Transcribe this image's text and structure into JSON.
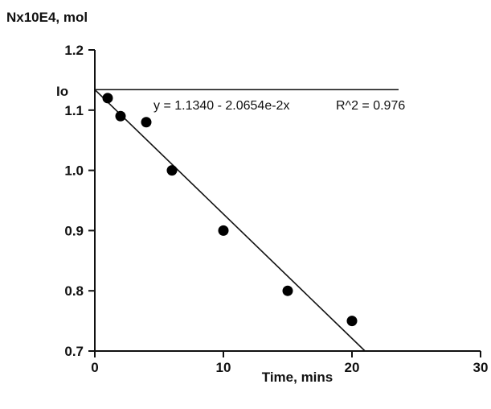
{
  "chart_data": {
    "type": "scatter",
    "ylabel": "Nx10E4, mol",
    "xlabel": "Time, mins",
    "xlim": [
      0,
      30
    ],
    "ylim": [
      0.7,
      1.2
    ],
    "x_ticks": [
      "0",
      "10",
      "20",
      "30"
    ],
    "y_ticks": [
      "0.7",
      "0.8",
      "0.9",
      "1.0",
      "1.1",
      "1.2"
    ],
    "grid": false,
    "points": [
      {
        "x": 1,
        "y": 1.12
      },
      {
        "x": 2,
        "y": 1.09
      },
      {
        "x": 4,
        "y": 1.08
      },
      {
        "x": 6,
        "y": 1.0
      },
      {
        "x": 10,
        "y": 0.9
      },
      {
        "x": 15,
        "y": 0.8
      },
      {
        "x": 20,
        "y": 0.75
      }
    ],
    "fit": {
      "intercept": 1.134,
      "slope": -0.020654
    },
    "fit_equation": "y = 1.1340 - 2.0654e-2x",
    "r_squared": "R^2 = 0.976",
    "reference_line": {
      "label": "Io",
      "y": 1.134
    }
  }
}
